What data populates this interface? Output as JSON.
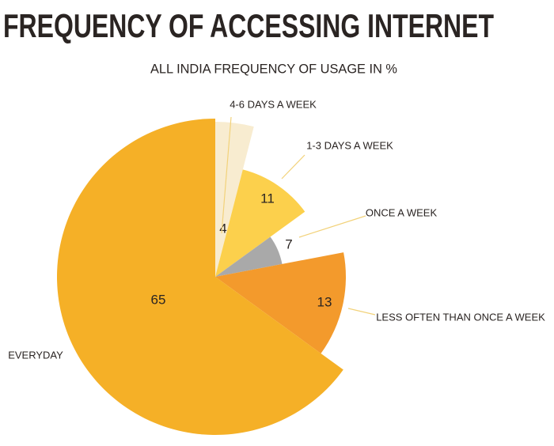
{
  "chart_data": {
    "type": "pie",
    "title": "FREQUENCY OF ACCESSING INTERNET",
    "subtitle": "ALL INDIA FREQUENCY OF USAGE IN %",
    "categories": [
      "4-6 DAYS A WEEK",
      "1-3 DAYS A WEEK",
      "ONCE A WEEK",
      "LESS OFTEN THAN ONCE A WEEK",
      "EVERYDAY"
    ],
    "values": [
      4,
      11,
      7,
      13,
      65
    ],
    "colors": [
      "#f8ecd0",
      "#fcd04c",
      "#a9a9a9",
      "#f39a2c",
      "#f5b027"
    ]
  }
}
